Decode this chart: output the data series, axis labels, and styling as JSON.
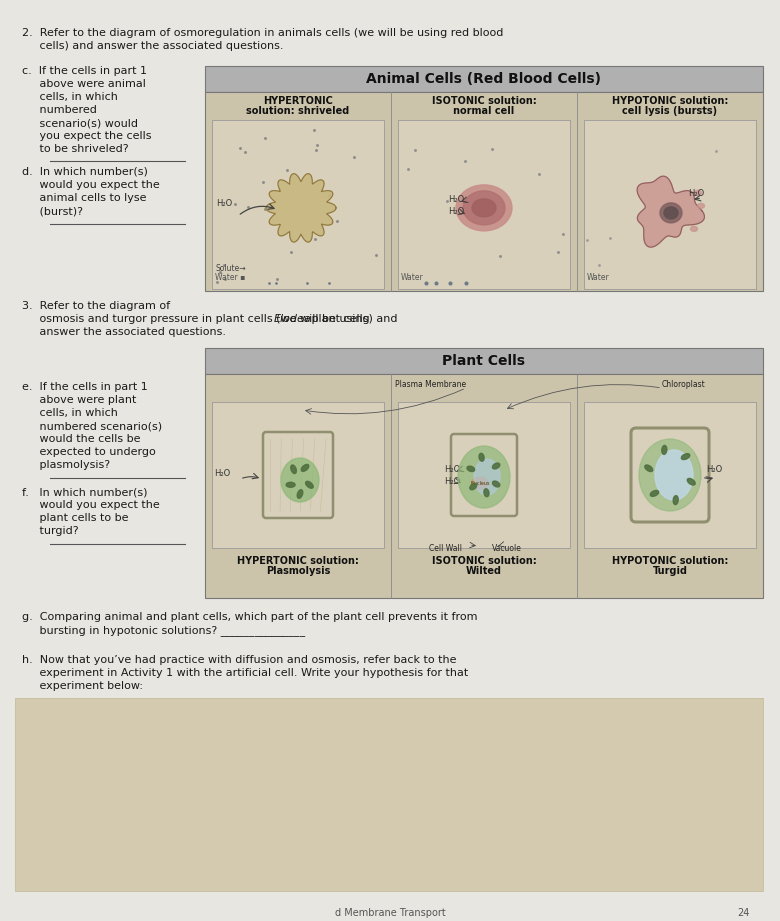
{
  "bg_color": "#d0d0d0",
  "page_bg": "#e8e6e0",
  "text_color": "#1a1a1a",
  "header_bg": "#b0b0b0",
  "answer_line_color": "#555555",
  "title_line1": "2.  Refer to the diagram of osmoregulation in animals cells (we will be using red blood",
  "title_line2": "     cells) and answer the associated questions.",
  "animal_header": "Animal Cells (Red Blood Cells)",
  "animal_col1_title_line1": "HYPERTONIC",
  "animal_col1_title_line2": "solution: shriveled",
  "animal_col2_title_line1": "ISOTONIC solution:",
  "animal_col2_title_line2": "normal cell",
  "animal_col3_title_line1": "HYPOTONIC solution:",
  "animal_col3_title_line2": "cell lysis (bursts)",
  "plant_header": "Plant Cells",
  "plant_col1_title_line1": "HYPERTONIC solution:",
  "plant_col1_title_line2": "Plasmolysis",
  "plant_col2_title_line1": "ISOTONIC solution:",
  "plant_col2_title_line2": "Wilted",
  "plant_col3_title_line1": "HYPOTONIC solution:",
  "plant_col3_title_line2": "Turgid",
  "plasma_membrane_label": "Plasma Membrane",
  "chloroplast_label": "Chloroplast",
  "cell_wall_label": "Cell Wall",
  "vacuole_label": "Vacuole",
  "footer_text": "d Membrane Transport",
  "page_num": "24",
  "diagram_bg": "#ccc4aa",
  "cell_box_bg": "#d8d0bb",
  "dot_color": "#808080",
  "spiky_fill": "#c8b880",
  "spiky_edge": "#907840",
  "rbc_outer": "#c8908a",
  "rbc_inner": "#a06060",
  "rbc_dark": "#705050",
  "plant_green": "#90b878",
  "plant_green_dark": "#507040",
  "plant_wall_color": "#909070",
  "vacuole_color": "#c0d8e8",
  "nucleus_color": "#d09060"
}
